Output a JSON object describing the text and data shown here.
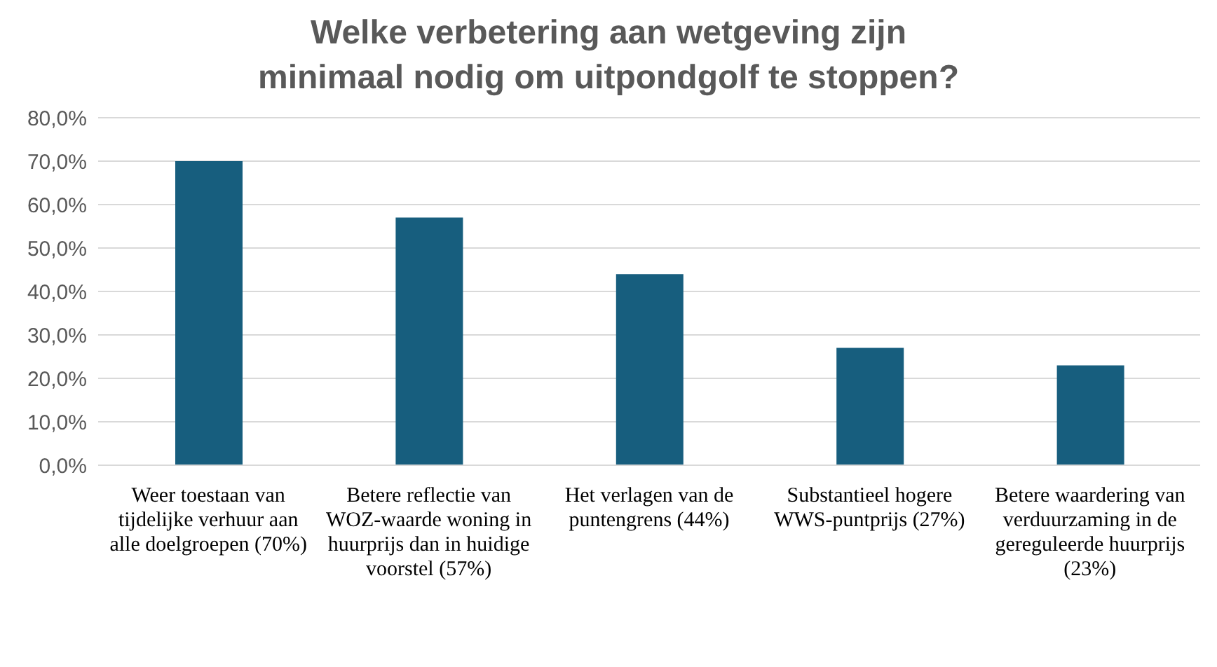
{
  "chart_data": {
    "type": "bar",
    "title": "Welke verbetering aan wetgeving zijn minimaal nodig om uitpondgolf te stoppen?",
    "categories": [
      "Weer toestaan van tijdelijke verhuur aan alle doelgroepen (70%)",
      "Betere reflectie van WOZ-waarde woning in huurprijs dan in huidige voorstel (57%)",
      "Het verlagen van de puntengrens (44%)",
      "Substantieel hogere WWS-puntprijs (27%)",
      "Betere waardering van verduurzaming in de gereguleerde huurprijs (23%)"
    ],
    "values": [
      70,
      57,
      44,
      27,
      23
    ],
    "color": "#175e7e",
    "ylim": [
      0,
      80
    ],
    "yticks": [
      {
        "value": 0,
        "label": "0,0%"
      },
      {
        "value": 10,
        "label": "10,0%"
      },
      {
        "value": 20,
        "label": "20,0%"
      },
      {
        "value": 30,
        "label": "30,0%"
      },
      {
        "value": 40,
        "label": "40,0%"
      },
      {
        "value": 50,
        "label": "50,0%"
      },
      {
        "value": 60,
        "label": "60,0%"
      },
      {
        "value": 70,
        "label": "70,0%"
      },
      {
        "value": 80,
        "label": "80,0%"
      }
    ],
    "grid": "y"
  }
}
